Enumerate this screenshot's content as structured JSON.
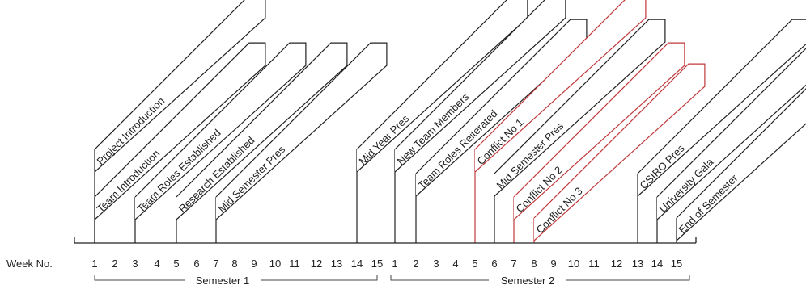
{
  "axis": {
    "label": "Week No.",
    "semester1_ticks": [
      "1",
      "2",
      "3",
      "4",
      "5",
      "6",
      "7",
      "8",
      "9",
      "10",
      "11",
      "12",
      "13",
      "14",
      "15"
    ],
    "semester2_ticks": [
      "1",
      "2",
      "3",
      "4",
      "5",
      "6",
      "7",
      "8",
      "9",
      "10",
      "11",
      "12",
      "13",
      "14",
      "15"
    ]
  },
  "semesters": [
    {
      "label": "Semester 1"
    },
    {
      "label": "Semester 2"
    }
  ],
  "events": [
    {
      "label": "Project Introduction",
      "semester": 1,
      "week": 1,
      "level": 3,
      "color": "#222222"
    },
    {
      "label": "Team Introduction",
      "semester": 1,
      "week": 1,
      "level": 1,
      "color": "#222222"
    },
    {
      "label": "Team Roles Established",
      "semester": 1,
      "week": 3,
      "level": 1,
      "color": "#222222"
    },
    {
      "label": "Research Established",
      "semester": 1,
      "week": 5,
      "level": 1,
      "color": "#222222"
    },
    {
      "label": "Mid Semester Pres",
      "semester": 1,
      "week": 7,
      "level": 1,
      "color": "#222222"
    },
    {
      "label": "Mid Year Pres",
      "semester": 1,
      "week": 14,
      "level": 3,
      "color": "#222222"
    },
    {
      "label": "New Team Members",
      "semester": 2,
      "week": 1,
      "level": 3,
      "color": "#222222"
    },
    {
      "label": "Team Roles Reiterated",
      "semester": 2,
      "week": 2,
      "level": 2,
      "color": "#222222"
    },
    {
      "label": "Conflict No 1",
      "semester": 2,
      "week": 5,
      "level": 3,
      "color": "#c0393b"
    },
    {
      "label": "Mid Semester Pres",
      "semester": 2,
      "week": 6,
      "level": 2,
      "color": "#222222"
    },
    {
      "label": "Conflict No 2",
      "semester": 2,
      "week": 7,
      "level": 1,
      "color": "#c0393b"
    },
    {
      "label": "Conflict No 3",
      "semester": 2,
      "week": 8,
      "level": 0,
      "color": "#c0393b"
    },
    {
      "label": "CSIRO Pres",
      "semester": 2,
      "week": 13,
      "level": 2,
      "color": "#222222"
    },
    {
      "label": "University Gala",
      "semester": 2,
      "week": 14,
      "level": 1,
      "color": "#222222"
    },
    {
      "label": "End of Semester",
      "semester": 2,
      "week": 15,
      "level": 0,
      "color": "#222222"
    }
  ]
}
